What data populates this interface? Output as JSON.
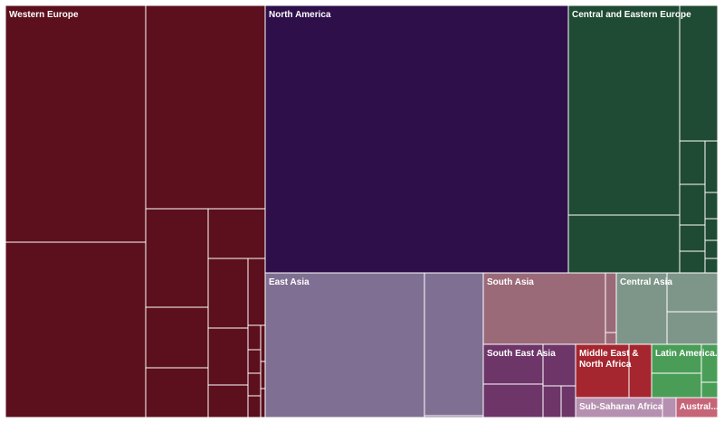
{
  "chart_data": {
    "type": "treemap",
    "title": "",
    "regions": [
      {
        "name": "Western Europe",
        "label": "Western Europe",
        "color": "#5c0f1c",
        "value": 34.5
      },
      {
        "name": "North America",
        "label": "North America",
        "color": "#2e0f4a",
        "value": 22.5
      },
      {
        "name": "Central and Eastern Europe",
        "label": "Central and Eastern Europe",
        "color": "#1f4a33",
        "value": 11.2
      },
      {
        "name": "East Asia",
        "label": "East Asia",
        "color": "#7f6f92",
        "value": 11.7
      },
      {
        "name": "South Asia",
        "label": "South Asia",
        "color": "#9b6a78",
        "value": 3.8
      },
      {
        "name": "Central Asia",
        "label": "Central Asia",
        "color": "#7e968a",
        "value": 3.4
      },
      {
        "name": "South East Asia",
        "label": "South East Asia",
        "color": "#6e3569",
        "value": 3.4
      },
      {
        "name": "Middle East & North Africa",
        "label": "Middle East & North Africa",
        "label_lines": [
          "Middle East &",
          "North Africa"
        ],
        "color": "#a5262f",
        "value": 2.2
      },
      {
        "name": "Latin America",
        "label": "Latin America...",
        "color": "#4a9d57",
        "value": 1.9
      },
      {
        "name": "Sub-Saharan Africa",
        "label": "Sub-Saharan Africa",
        "color": "#b690b1",
        "value": 0.9
      },
      {
        "name": "Australia",
        "label": "Austral...",
        "color": "#c66578",
        "value": 0.5
      }
    ]
  }
}
